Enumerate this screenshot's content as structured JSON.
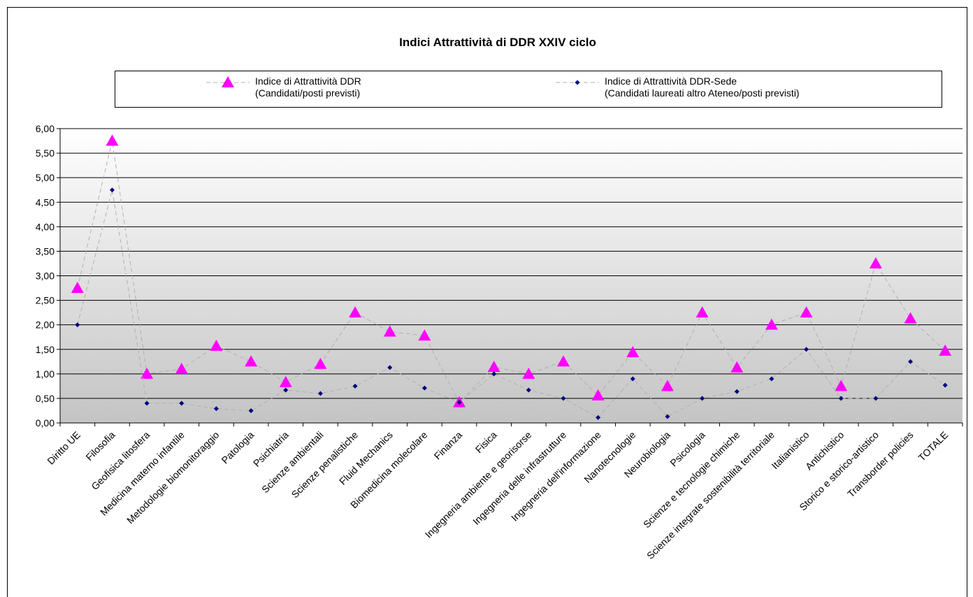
{
  "chart_data": {
    "type": "line",
    "title": "Indici Attrattività di DDR XXIV ciclo",
    "categories": [
      "Diritto UE",
      "Filosofia",
      "Geofisica litosfera",
      "Medicina materno infantile",
      "Metodologie biomonitoraggio",
      "Patologia",
      "Psichiatria",
      "Scienze ambientali",
      "Scienze penalistiche",
      "Fluid Mechanics",
      "Biomedicina molecolare",
      "Finanza",
      "Fisica",
      "Ingegneria ambiente e georisorse",
      "Ingegneria delle infrastrutture",
      "Ingegneria dell'informazione",
      "Nanotecnologie",
      "Neurobiologia",
      "Psicologia",
      "Scienze e tecnologie chimiche",
      "Scienze integrate sostenibilità territoriale",
      "Italianistico",
      "Antichistico",
      "Storico e storico-artistico",
      "Transborder policies",
      "TOTALE"
    ],
    "series": [
      {
        "name": "Indice di Attrattività DDR\n(Candidati/posti previsti)",
        "color": "#ff00ff",
        "marker": "triangle",
        "values": [
          2.75,
          5.75,
          1.0,
          1.1,
          1.57,
          1.25,
          0.83,
          1.2,
          2.25,
          1.86,
          1.78,
          0.42,
          1.14,
          1.0,
          1.25,
          0.56,
          1.44,
          0.75,
          2.25,
          1.13,
          2.0,
          2.25,
          0.75,
          3.25,
          2.13,
          1.47
        ]
      },
      {
        "name": "Indice di Attrattività DDR-Sede\n(Candidati laureati altro  Ateneo/posti previsti)",
        "color": "#000080",
        "marker": "diamond",
        "values": [
          2.0,
          4.75,
          0.4,
          0.4,
          0.29,
          0.25,
          0.67,
          0.6,
          0.75,
          1.13,
          0.71,
          0.42,
          1.0,
          0.67,
          0.5,
          0.11,
          0.9,
          0.13,
          0.5,
          0.64,
          0.9,
          1.5,
          0.5,
          0.5,
          1.25,
          0.77
        ]
      }
    ],
    "ylim": [
      0,
      6
    ],
    "yticks": [
      {
        "value": 0,
        "label": "0,00"
      },
      {
        "value": 0.5,
        "label": "0,50"
      },
      {
        "value": 1,
        "label": "1,00"
      },
      {
        "value": 1.5,
        "label": "1,50"
      },
      {
        "value": 2,
        "label": "2,00"
      },
      {
        "value": 2.5,
        "label": "2,50"
      },
      {
        "value": 3,
        "label": "3,00"
      },
      {
        "value": 3.5,
        "label": "3,50"
      },
      {
        "value": 4,
        "label": "4,00"
      },
      {
        "value": 4.5,
        "label": "4,50"
      },
      {
        "value": 5,
        "label": "5,00"
      },
      {
        "value": 5.5,
        "label": "5,50"
      },
      {
        "value": 6,
        "label": "6,00"
      }
    ],
    "grid": true
  }
}
